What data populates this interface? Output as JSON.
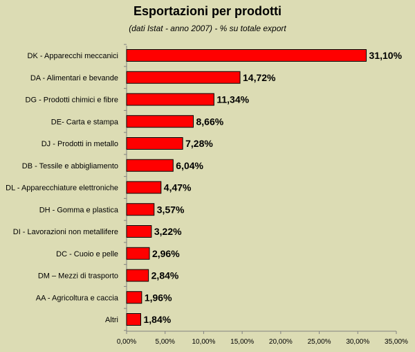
{
  "chart_data": {
    "type": "bar",
    "orientation": "horizontal",
    "title": "Esportazioni per prodotti",
    "subtitle": "(dati Istat - anno 2007) - % su totale export",
    "categories": [
      "DK - Apparecchi meccanici",
      "DA - Alimentari e bevande",
      "DG - Prodotti chimici e fibre",
      "DE- Carta e stampa",
      "DJ - Prodotti in metallo",
      "DB - Tessile e abbigliamento",
      "DL - Apparecchiature elettroniche",
      "DH - Gomma e plastica",
      "DI - Lavorazioni non metallifere",
      "DC - Cuoio e pelle",
      "DM – Mezzi di trasporto",
      "AA - Agricoltura e caccia",
      "Altri"
    ],
    "values": [
      31.1,
      14.72,
      11.34,
      8.66,
      7.28,
      6.04,
      4.47,
      3.57,
      3.22,
      2.96,
      2.84,
      1.96,
      1.84
    ],
    "value_labels": [
      "31,10%",
      "14,72%",
      "11,34%",
      "8,66%",
      "7,28%",
      "6,04%",
      "4,47%",
      "3,57%",
      "3,22%",
      "2,96%",
      "2,84%",
      "1,96%",
      "1,84%"
    ],
    "xlim": [
      0,
      35
    ],
    "xticks": [
      0,
      5,
      10,
      15,
      20,
      25,
      30,
      35
    ],
    "xtick_labels": [
      "0,00%",
      "5,00%",
      "10,00%",
      "15,00%",
      "20,00%",
      "25,00%",
      "30,00%",
      "35,00%"
    ],
    "grid": false,
    "legend": "none",
    "colors": {
      "bar": "#ff0000",
      "bar_edge": "#000000",
      "background": "#dcdcb4",
      "axis": "#808080"
    }
  }
}
